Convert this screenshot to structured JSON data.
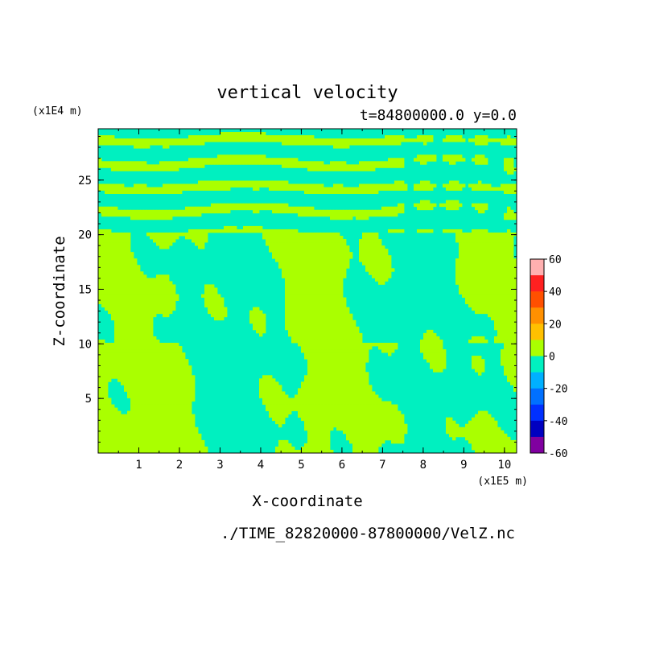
{
  "chart_data": {
    "type": "heatmap",
    "title": "vertical velocity",
    "subtitle": "t=84800000.0 y=0.0",
    "xlabel": "X-coordinate",
    "ylabel": "Z-coordinate",
    "x_unit": "(x1E5 m)",
    "y_unit": "(x1E4 m)",
    "xlim": [
      0,
      10.3
    ],
    "ylim": [
      0,
      29.7
    ],
    "x_ticks": [
      1,
      2,
      3,
      4,
      5,
      6,
      7,
      8,
      9,
      10
    ],
    "y_ticks": [
      5,
      10,
      15,
      20,
      25
    ],
    "colorbar": {
      "ticks": [
        "60",
        "40",
        "20",
        "0",
        "-20",
        "-40",
        "-60"
      ],
      "levels": [
        {
          "from": 50,
          "to": 60,
          "color": "#ffb0b0"
        },
        {
          "from": 40,
          "to": 50,
          "color": "#ff2020"
        },
        {
          "from": 30,
          "to": 40,
          "color": "#ff5000"
        },
        {
          "from": 20,
          "to": 30,
          "color": "#ff9000"
        },
        {
          "from": 10,
          "to": 20,
          "color": "#ffc000"
        },
        {
          "from": 0,
          "to": 10,
          "color": "#aaff00"
        },
        {
          "from": -10,
          "to": 0,
          "color": "#00f0c0"
        },
        {
          "from": -20,
          "to": -10,
          "color": "#00b0ff"
        },
        {
          "from": -30,
          "to": -20,
          "color": "#0070ff"
        },
        {
          "from": -40,
          "to": -30,
          "color": "#0030ff"
        },
        {
          "from": -50,
          "to": -40,
          "color": "#0000c0"
        },
        {
          "from": -60,
          "to": -50,
          "color": "#8000a0"
        }
      ]
    },
    "dominant_colors": {
      "positive": "#aaff00",
      "negative": "#00f0c0"
    }
  },
  "source_file": "./TIME_82820000-87800000/VelZ.nc"
}
